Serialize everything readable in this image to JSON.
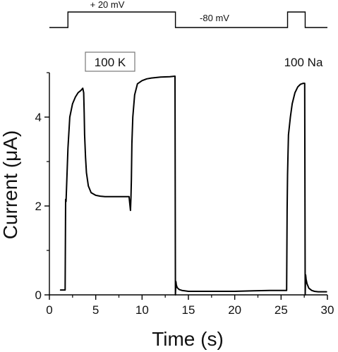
{
  "chart_data": {
    "type": "line",
    "xlabel": "Time (s)",
    "ylabel": "Current (μA)",
    "xlim": [
      0,
      30
    ],
    "ylim": [
      0,
      5
    ],
    "xticks": [
      0,
      5,
      10,
      15,
      20,
      25,
      30
    ],
    "yticks": [
      0,
      2,
      4
    ],
    "grid": false,
    "annotations": {
      "boxed": "100 K",
      "plain": "100 Na"
    },
    "protocol": {
      "label_high": "+ 20 mV",
      "label_low": "-80 mV",
      "segments": [
        {
          "t_start": 0,
          "t_end": 2.0,
          "level": "-80 mV"
        },
        {
          "t_start": 2.0,
          "t_end": 13.6,
          "level": "+ 20 mV"
        },
        {
          "t_start": 13.6,
          "t_end": 25.7,
          "level": "-80 mV"
        },
        {
          "t_start": 25.7,
          "t_end": 27.6,
          "level": "+ 20 mV"
        },
        {
          "t_start": 27.6,
          "t_end": 30.0,
          "level": "-80 mV"
        }
      ]
    },
    "series": [
      {
        "x": [
          1.2,
          1.6,
          1.7,
          1.75,
          1.8,
          2.0,
          2.2,
          2.5,
          2.8,
          3.1,
          3.4,
          3.6,
          3.7,
          3.75,
          3.8,
          3.9,
          4.0,
          4.2,
          4.5,
          5.0,
          5.5,
          6.0,
          7.0,
          8.0,
          8.6,
          8.75,
          8.8,
          8.85,
          8.9,
          9.0,
          9.2,
          9.5,
          10.0,
          10.5,
          11.0,
          12.0,
          13.0,
          13.55,
          13.6,
          13.65,
          13.7,
          13.8,
          14.0,
          14.3,
          14.6,
          15.0,
          16.0,
          18.0,
          20.0,
          22.0,
          24.0,
          25.6,
          25.65,
          25.7,
          25.75,
          25.8,
          26.0,
          26.2,
          26.5,
          26.8,
          27.1,
          27.4,
          27.55,
          27.6,
          27.65,
          27.7,
          27.8,
          28.0,
          28.3,
          28.6,
          29.0,
          29.5,
          29.9
        ],
        "y": [
          0.11,
          0.11,
          0.11,
          2.15,
          2.1,
          3.3,
          4.0,
          4.3,
          4.45,
          4.55,
          4.6,
          4.65,
          4.55,
          4.1,
          3.6,
          3.1,
          2.75,
          2.45,
          2.3,
          2.24,
          2.22,
          2.21,
          2.21,
          2.21,
          2.21,
          1.9,
          2.2,
          2.6,
          3.4,
          4.0,
          4.5,
          4.75,
          4.82,
          4.86,
          4.88,
          4.9,
          4.91,
          4.92,
          0.0,
          0.3,
          0.22,
          0.16,
          0.12,
          0.1,
          0.09,
          0.08,
          0.08,
          0.08,
          0.08,
          0.09,
          0.1,
          0.1,
          1.9,
          2.7,
          3.2,
          3.6,
          4.0,
          4.3,
          4.55,
          4.68,
          4.74,
          4.76,
          4.76,
          0.0,
          0.45,
          0.35,
          0.25,
          0.15,
          0.1,
          0.08,
          0.07,
          0.07,
          0.07
        ]
      }
    ]
  }
}
